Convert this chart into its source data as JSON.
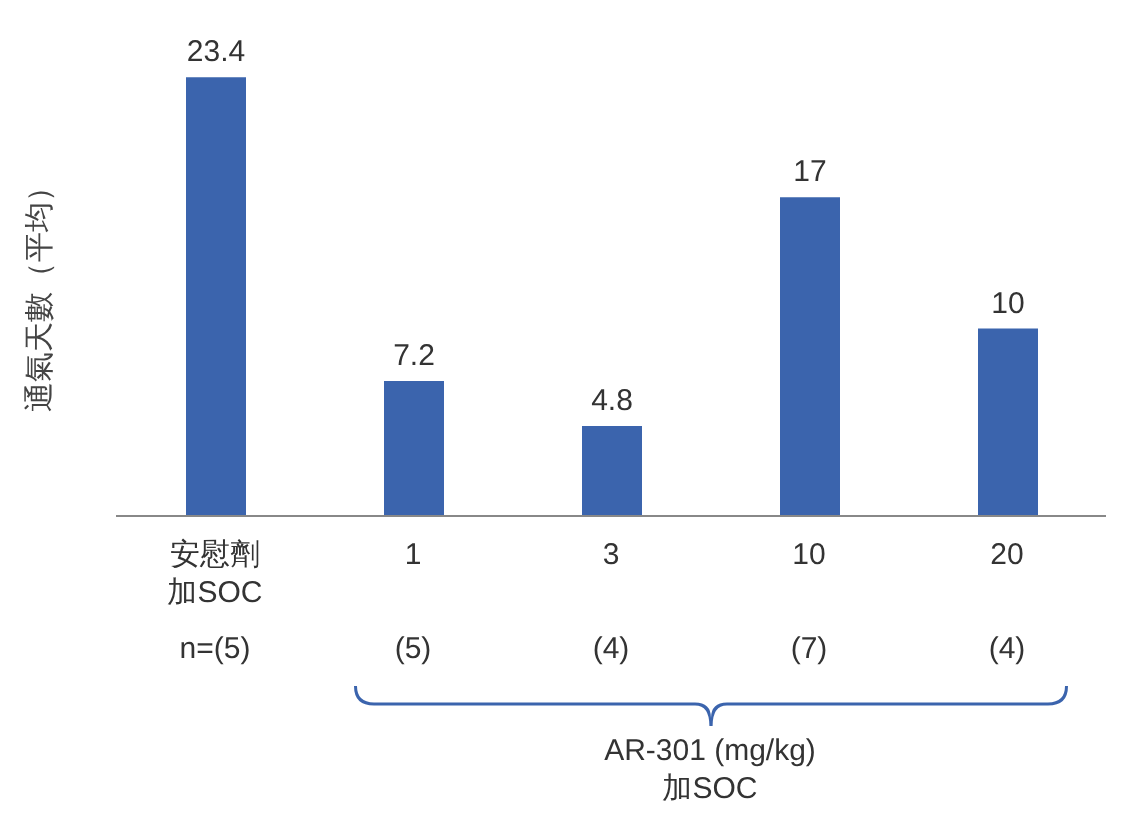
{
  "chart_data": {
    "type": "bar",
    "ylabel": "通氣天數（平均）",
    "categories": [
      "安慰劑加SOC",
      "1",
      "3",
      "10",
      "20"
    ],
    "values": [
      23.4,
      7.2,
      4.8,
      17,
      10
    ],
    "color": "#3b64ad",
    "data_labels": true,
    "grid": false,
    "annotations": [
      "n=(5)",
      "(5)",
      "(4)",
      "(7)",
      "(4)",
      "AR-301 (mg/kg)\n加SOC"
    ]
  }
}
